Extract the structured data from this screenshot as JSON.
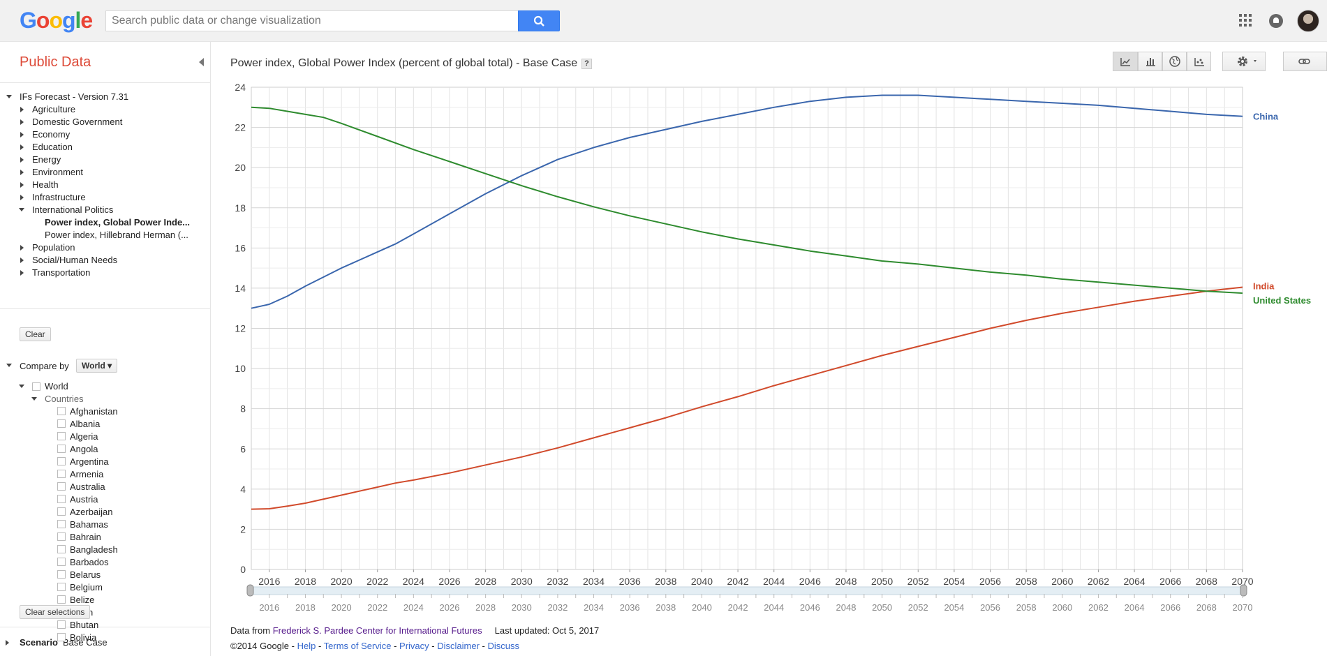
{
  "header": {
    "logo_letters": [
      {
        "ch": "G",
        "color": "#4285f4"
      },
      {
        "ch": "o",
        "color": "#ea4335"
      },
      {
        "ch": "o",
        "color": "#fbbc05"
      },
      {
        "ch": "g",
        "color": "#4285f4"
      },
      {
        "ch": "l",
        "color": "#34a853"
      },
      {
        "ch": "e",
        "color": "#ea4335"
      }
    ],
    "search_placeholder": "Search public data or change visualization",
    "search_icon": "magnifier-icon",
    "apps_icon": "apps-grid-icon",
    "notifications_icon": "bell-icon"
  },
  "sidebar": {
    "title": "Public Data",
    "dataset": "IFs Forecast - Version 7.31",
    "categories": [
      {
        "label": "Agriculture",
        "expanded": false
      },
      {
        "label": "Domestic Government",
        "expanded": false
      },
      {
        "label": "Economy",
        "expanded": false
      },
      {
        "label": "Education",
        "expanded": false
      },
      {
        "label": "Energy",
        "expanded": false
      },
      {
        "label": "Environment",
        "expanded": false
      },
      {
        "label": "Health",
        "expanded": false
      },
      {
        "label": "Infrastructure",
        "expanded": false
      },
      {
        "label": "International Politics",
        "expanded": true
      }
    ],
    "sub_items": [
      {
        "label": "Power index, Global Power Inde...",
        "selected": true
      },
      {
        "label": "Power index, Hillebrand Herman (...",
        "selected": false
      }
    ],
    "categories_after": [
      {
        "label": "Population"
      },
      {
        "label": "Social/Human Needs"
      },
      {
        "label": "Transportation"
      }
    ],
    "clear_label": "Clear",
    "compare_by_label": "Compare by",
    "compare_by_value": "World",
    "world_label": "World",
    "countries_label": "Countries",
    "countries": [
      "Afghanistan",
      "Albania",
      "Algeria",
      "Angola",
      "Argentina",
      "Armenia",
      "Australia",
      "Austria",
      "Azerbaijan",
      "Bahamas",
      "Bahrain",
      "Bangladesh",
      "Barbados",
      "Belarus",
      "Belgium",
      "Belize",
      "Benin",
      "Bhutan",
      "Bolivia"
    ],
    "clear_selections_label": "Clear selections",
    "scenario_label": "Scenario",
    "scenario_value": "Base Case"
  },
  "main": {
    "title": "Power index, Global Power Index (percent of global total) - Base Case",
    "help_label": "?",
    "toolbar_icons": [
      "line-chart-icon",
      "bar-chart-icon",
      "map-globe-icon",
      "scatter-chart-icon",
      "gear-icon",
      "link-icon"
    ]
  },
  "chart_data": {
    "type": "line",
    "title": "Power index, Global Power Index (percent of global total) - Base Case",
    "xlim": [
      2015,
      2070
    ],
    "ylim": [
      0,
      24
    ],
    "yticks": [
      0,
      2,
      4,
      6,
      8,
      10,
      12,
      14,
      16,
      18,
      20,
      22,
      24
    ],
    "xticks": [
      2016,
      2018,
      2020,
      2022,
      2024,
      2026,
      2028,
      2030,
      2032,
      2034,
      2036,
      2038,
      2040,
      2042,
      2044,
      2046,
      2048,
      2050,
      2052,
      2054,
      2056,
      2058,
      2060,
      2062,
      2064,
      2066,
      2068,
      2070
    ],
    "grid": true,
    "legend": "right-end labels",
    "series": [
      {
        "name": "China",
        "color": "#3a66ad",
        "x": [
          2015,
          2016,
          2017,
          2018,
          2020,
          2022,
          2023,
          2024,
          2026,
          2028,
          2030,
          2032,
          2034,
          2036,
          2038,
          2040,
          2042,
          2044,
          2046,
          2048,
          2050,
          2052,
          2054,
          2056,
          2058,
          2060,
          2062,
          2064,
          2066,
          2068,
          2070
        ],
        "values": [
          13.0,
          13.2,
          13.6,
          14.1,
          15.0,
          15.8,
          16.2,
          16.7,
          17.7,
          18.7,
          19.6,
          20.4,
          21.0,
          21.5,
          21.9,
          22.3,
          22.65,
          23.0,
          23.3,
          23.5,
          23.6,
          23.6,
          23.5,
          23.4,
          23.3,
          23.2,
          23.1,
          22.95,
          22.8,
          22.65,
          22.55
        ]
      },
      {
        "name": "India",
        "color": "#d14a2b",
        "x": [
          2015,
          2016,
          2017,
          2018,
          2020,
          2022,
          2023,
          2024,
          2026,
          2028,
          2030,
          2032,
          2034,
          2036,
          2038,
          2040,
          2042,
          2044,
          2046,
          2048,
          2050,
          2052,
          2054,
          2056,
          2058,
          2060,
          2062,
          2064,
          2066,
          2068,
          2070
        ],
        "values": [
          3.0,
          3.02,
          3.15,
          3.3,
          3.7,
          4.1,
          4.3,
          4.45,
          4.8,
          5.2,
          5.6,
          6.05,
          6.55,
          7.05,
          7.55,
          8.1,
          8.6,
          9.15,
          9.65,
          10.15,
          10.65,
          11.1,
          11.55,
          12.0,
          12.4,
          12.75,
          13.05,
          13.35,
          13.6,
          13.85,
          14.05
        ]
      },
      {
        "name": "United States",
        "color": "#2e8b2e",
        "x": [
          2015,
          2016,
          2017,
          2018,
          2019,
          2020,
          2022,
          2024,
          2026,
          2028,
          2030,
          2032,
          2034,
          2036,
          2038,
          2040,
          2042,
          2044,
          2046,
          2048,
          2050,
          2052,
          2054,
          2056,
          2058,
          2060,
          2062,
          2064,
          2066,
          2068,
          2070
        ],
        "values": [
          23.0,
          22.95,
          22.8,
          22.65,
          22.5,
          22.2,
          21.55,
          20.9,
          20.3,
          19.7,
          19.1,
          18.55,
          18.05,
          17.6,
          17.2,
          16.8,
          16.45,
          16.15,
          15.85,
          15.6,
          15.35,
          15.2,
          15.0,
          14.8,
          14.65,
          14.45,
          14.3,
          14.15,
          14.0,
          13.85,
          13.75
        ]
      }
    ]
  },
  "footer": {
    "data_from_label": "Data from",
    "source_link": "Frederick S. Pardee Center for International Futures",
    "last_updated": "Last updated: Oct 5, 2017",
    "copyright": "©2014 Google",
    "links": [
      "Help",
      "Terms of Service",
      "Privacy",
      "Disclaimer",
      "Discuss"
    ]
  }
}
